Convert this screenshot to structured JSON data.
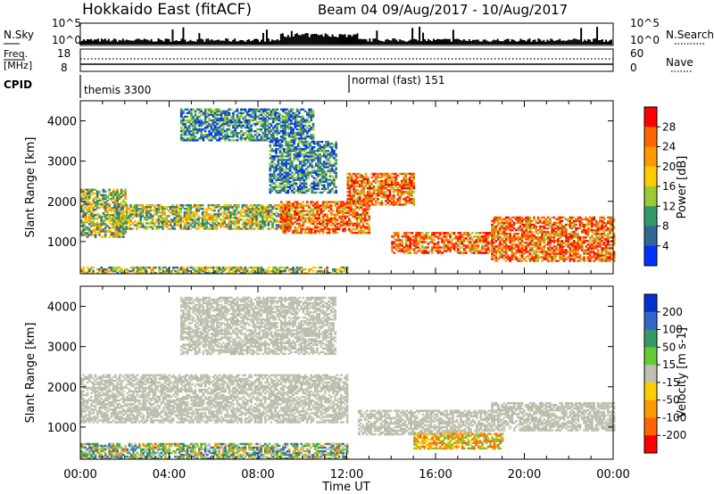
{
  "header": {
    "title_left": "Hokkaido East (fitACF)",
    "title_right": "Beam 04 09/Aug/2017 - 10/Aug/2017"
  },
  "status_panels": {
    "nsky_label": "N.Sky",
    "nsearch_label": "N.Search",
    "nsky_ticks": [
      "10^5",
      "10^0"
    ],
    "nsearch_ticks": [
      "10^5",
      "10^0"
    ],
    "freq_label_1": "Freq.",
    "freq_label_2": "[MHz]",
    "freq_ticks": [
      "18",
      "8"
    ],
    "nave_label": "Nave",
    "nave_ticks": [
      "60",
      "0"
    ],
    "cpid_label": "CPID",
    "cpid_segments": [
      {
        "name": "themis 3300",
        "start_hour": 0
      },
      {
        "name": "normal (fast) 151",
        "start_hour": 12
      }
    ]
  },
  "chart_data": [
    {
      "type": "heatmap",
      "title": "",
      "quantity": "Power",
      "xlabel": "",
      "ylabel": "Slant Range [km]",
      "xlim_hours": [
        0,
        24
      ],
      "ylim_km": [
        200,
        4500
      ],
      "x_ticks": [
        "00:00",
        "04:00",
        "08:00",
        "12:00",
        "16:00",
        "20:00",
        "00:00"
      ],
      "y_ticks": [
        1000,
        2000,
        3000,
        4000
      ],
      "colorbar": {
        "label": "Power [dB]",
        "ticks": [
          "28",
          "24",
          "20",
          "16",
          "12",
          "8",
          "4"
        ],
        "colors": [
          "#ff0000",
          "#ff6600",
          "#ff9900",
          "#ffcc00",
          "#99cc33",
          "#339966",
          "#336699",
          "#0033ff"
        ]
      },
      "regions": [
        {
          "t0": 0.0,
          "t1": 12.0,
          "r0": 200,
          "r1": 350,
          "level": "medium"
        },
        {
          "t0": 0.0,
          "t1": 2.0,
          "r0": 1100,
          "r1": 2300,
          "level": "medium"
        },
        {
          "t0": 1.5,
          "t1": 9.5,
          "r0": 1300,
          "r1": 1900,
          "level": "medium"
        },
        {
          "t0": 4.5,
          "t1": 10.5,
          "r0": 3500,
          "r1": 4300,
          "level": "low"
        },
        {
          "t0": 8.5,
          "t1": 11.5,
          "r0": 2200,
          "r1": 3500,
          "level": "low"
        },
        {
          "t0": 9.0,
          "t1": 13.0,
          "r0": 1200,
          "r1": 2000,
          "level": "high"
        },
        {
          "t0": 12.0,
          "t1": 15.0,
          "r0": 1900,
          "r1": 2700,
          "level": "high"
        },
        {
          "t0": 14.0,
          "t1": 18.5,
          "r0": 700,
          "r1": 1200,
          "level": "high"
        },
        {
          "t0": 18.5,
          "t1": 24.0,
          "r0": 500,
          "r1": 1600,
          "level": "high"
        }
      ]
    },
    {
      "type": "heatmap",
      "title": "",
      "quantity": "Velocity",
      "xlabel": "Time UT",
      "ylabel": "Slant Range [km]",
      "xlim_hours": [
        0,
        24
      ],
      "ylim_km": [
        200,
        4500
      ],
      "x_ticks": [
        "00:00",
        "04:00",
        "08:00",
        "12:00",
        "16:00",
        "20:00",
        "00:00"
      ],
      "y_ticks": [
        1000,
        2000,
        3000,
        4000
      ],
      "colorbar": {
        "label": "Velocity [m s-1]",
        "ticks": [
          "200",
          "100",
          "50",
          "15",
          "-15",
          "-50",
          "-100",
          "-200"
        ],
        "colors": [
          "#0033cc",
          "#3366cc",
          "#339966",
          "#66cc33",
          "#c0c0b0",
          "#ffcc00",
          "#ff9900",
          "#ff6600",
          "#ff0000"
        ]
      },
      "regions": [
        {
          "t0": 0.0,
          "t1": 12.0,
          "r0": 200,
          "r1": 600,
          "level": "mixed"
        },
        {
          "t0": 0.0,
          "t1": 12.0,
          "r0": 1100,
          "r1": 2300,
          "level": "ground"
        },
        {
          "t0": 4.5,
          "t1": 11.5,
          "r0": 2800,
          "r1": 4200,
          "level": "ground"
        },
        {
          "t0": 12.5,
          "t1": 18.5,
          "r0": 800,
          "r1": 1400,
          "level": "ground"
        },
        {
          "t0": 15.0,
          "t1": 19.0,
          "r0": 450,
          "r1": 850,
          "level": "away"
        },
        {
          "t0": 18.5,
          "t1": 24.0,
          "r0": 900,
          "r1": 1600,
          "level": "ground"
        }
      ]
    }
  ]
}
